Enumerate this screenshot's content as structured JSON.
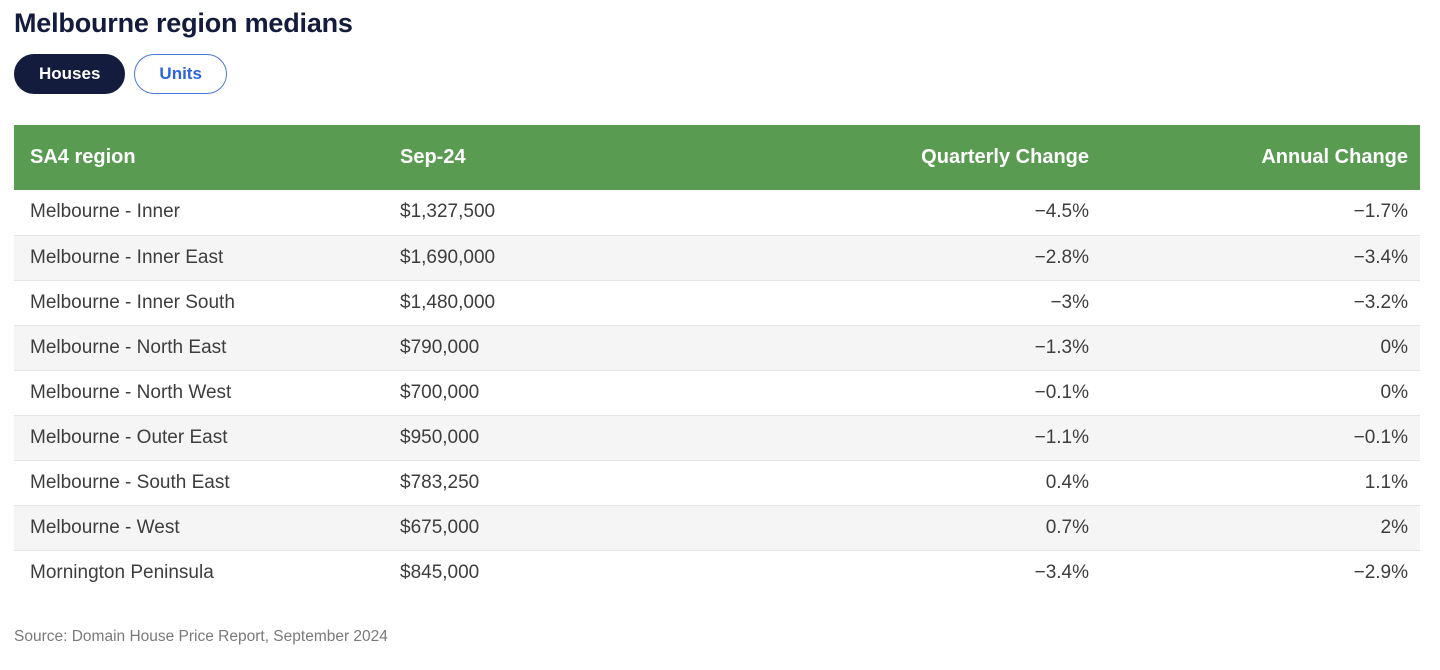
{
  "title": "Melbourne region medians",
  "toggles": [
    {
      "label": "Houses",
      "active": true
    },
    {
      "label": "Units",
      "active": false
    }
  ],
  "chart_data": {
    "type": "table",
    "columns": [
      "SA4 region",
      "Sep-24",
      "Quarterly Change",
      "Annual Change"
    ],
    "rows": [
      [
        "Melbourne - Inner",
        "$1,327,500",
        "−4.5%",
        "−1.7%"
      ],
      [
        "Melbourne - Inner East",
        "$1,690,000",
        "−2.8%",
        "−3.4%"
      ],
      [
        "Melbourne - Inner South",
        "$1,480,000",
        "−3%",
        "−3.2%"
      ],
      [
        "Melbourne - North East",
        "$790,000",
        "−1.3%",
        "0%"
      ],
      [
        "Melbourne - North West",
        "$700,000",
        "−0.1%",
        "0%"
      ],
      [
        "Melbourne - Outer East",
        "$950,000",
        "−1.1%",
        "−0.1%"
      ],
      [
        "Melbourne - South East",
        "$783,250",
        "0.4%",
        "1.1%"
      ],
      [
        "Melbourne - West",
        "$675,000",
        "0.7%",
        "2%"
      ],
      [
        "Mornington Peninsula",
        "$845,000",
        "−3.4%",
        "−2.9%"
      ]
    ],
    "title": "Melbourne region medians",
    "source": "Source: Domain House Price Report, September 2024"
  },
  "source": "Source: Domain House Price Report, September 2024",
  "colors": {
    "header_green": "#5a9b52",
    "navy": "#131c3d",
    "accent_blue": "#2c64d9",
    "row_alt": "#f5f5f5",
    "row_border": "#e4e4e4",
    "cell_text": "#3d3d3d",
    "source_gray": "#7a7a7a"
  }
}
